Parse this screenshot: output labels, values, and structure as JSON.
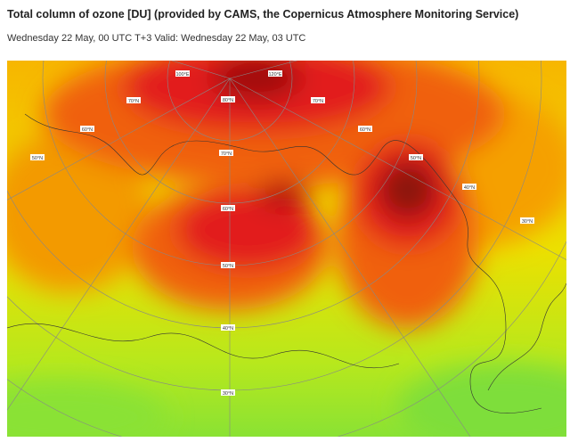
{
  "header": {
    "title": "Total column of ozone [DU] (provided by CAMS, the Copernicus Atmosphere Monitoring Service)",
    "subtitle": "Wednesday 22 May, 00 UTC T+3 Valid: Wednesday 22 May, 03 UTC"
  },
  "map": {
    "labels": [
      "100°E",
      "120°E",
      "80°N",
      "70°N",
      "70°N",
      "60°N",
      "60°N",
      "70°N",
      "50°N",
      "50°N",
      "60°N",
      "40°N",
      "30°N",
      "50°N",
      "40°N",
      "30°N"
    ]
  }
}
